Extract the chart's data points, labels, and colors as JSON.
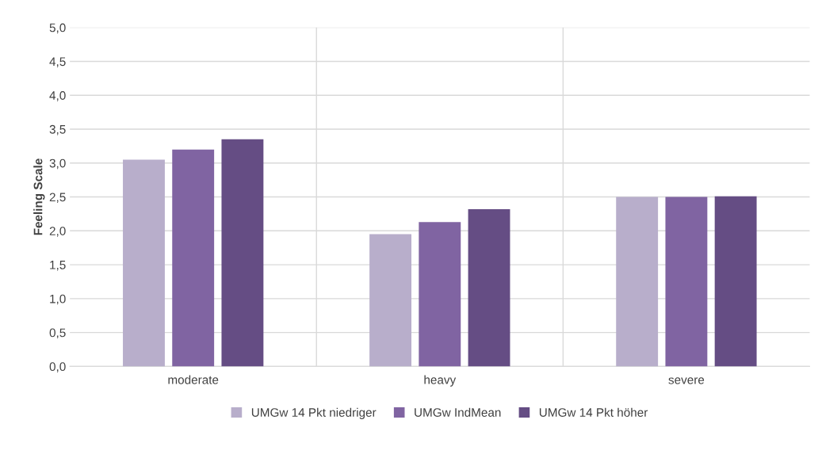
{
  "chart_data": {
    "type": "bar",
    "ylabel": "Feeling Scale",
    "categories": [
      "moderate",
      "heavy",
      "severe"
    ],
    "series": [
      {
        "name": "UMGw 14 Pkt niedriger",
        "color": "#b8aecb",
        "values": [
          3.05,
          1.95,
          2.5
        ]
      },
      {
        "name": "UMGw IndMean",
        "color": "#8064a2",
        "values": [
          3.2,
          2.13,
          2.5
        ]
      },
      {
        "name": "UMGw 14 Pkt höher",
        "color": "#654d84",
        "values": [
          3.35,
          2.32,
          2.51
        ]
      }
    ],
    "ylim": [
      0,
      5
    ],
    "yticks": [
      {
        "value": 0,
        "label": "0,0"
      },
      {
        "value": 0.5,
        "label": "0,5"
      },
      {
        "value": 1,
        "label": "1,0"
      },
      {
        "value": 1.5,
        "label": "1,5"
      },
      {
        "value": 2,
        "label": "2,0"
      },
      {
        "value": 2.5,
        "label": "2,5"
      },
      {
        "value": 3,
        "label": "3,0"
      },
      {
        "value": 3.5,
        "label": "3,5"
      },
      {
        "value": 4,
        "label": "4,0"
      },
      {
        "value": 4.5,
        "label": "4,5"
      },
      {
        "value": 5,
        "label": "5,0"
      }
    ],
    "grid": true,
    "legend": "bottom"
  }
}
